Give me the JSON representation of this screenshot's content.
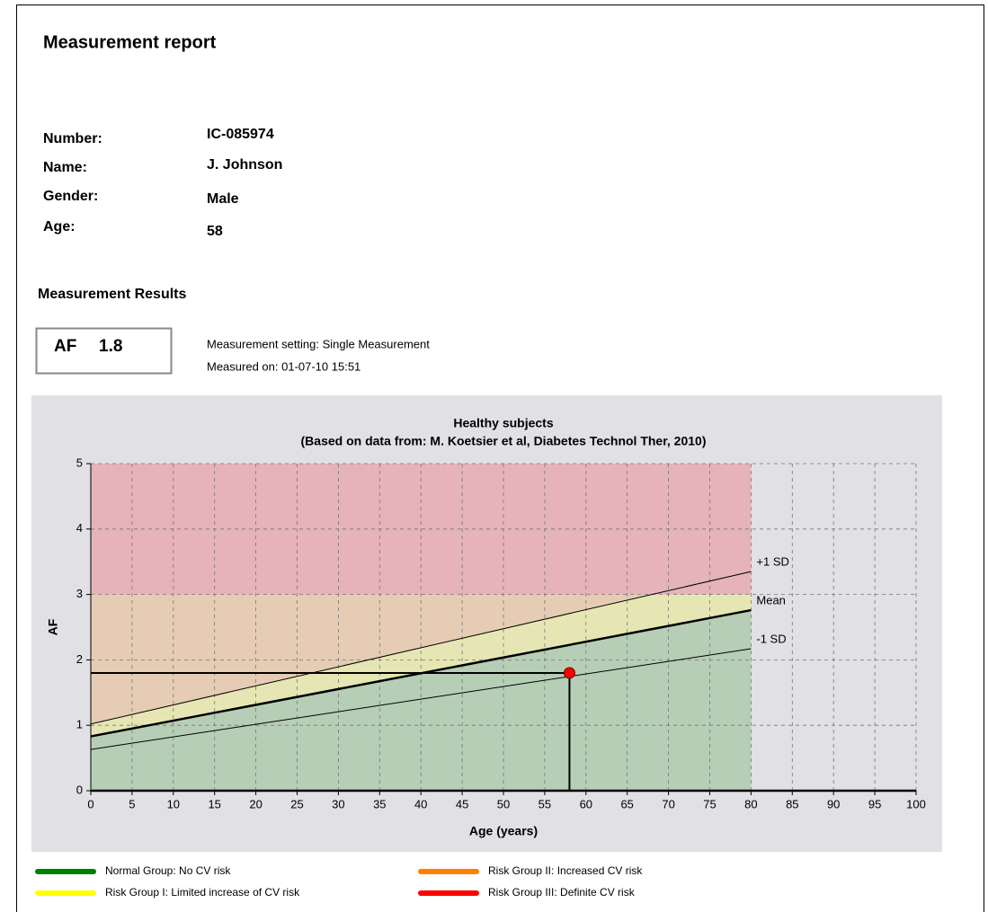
{
  "header": {
    "title": "Measurement report"
  },
  "patient": [
    {
      "label": "Number:",
      "value": "IC-085974"
    },
    {
      "label": "Name:",
      "value": "J. Johnson"
    },
    {
      "label": "Gender:",
      "value": "Male"
    },
    {
      "label": "Age:",
      "value": "58"
    }
  ],
  "results": {
    "heading": "Measurement Results",
    "af_label": "AF",
    "af_value": "1.8",
    "setting": "Measurement setting: Single Measurement",
    "measured_on": "Measured on: 01-07-10 15:51"
  },
  "chart_data": {
    "type": "line",
    "title": "Healthy subjects",
    "subtitle": "(Based on data from: M. Koetsier et al, Diabetes Technol Ther, 2010)",
    "x_label": "Age (years)",
    "y_label": "AF",
    "xlim": [
      0,
      100
    ],
    "ylim": [
      0,
      5
    ],
    "xticks": [
      0,
      5,
      10,
      15,
      20,
      25,
      30,
      35,
      40,
      45,
      50,
      55,
      60,
      65,
      70,
      75,
      80,
      85,
      90,
      95,
      100
    ],
    "yticks": [
      0,
      1,
      2,
      3,
      4,
      5
    ],
    "grid": true,
    "series": [
      {
        "name": "+1 SD",
        "color": "#000000",
        "line_width": 1,
        "x": [
          0,
          80
        ],
        "values": [
          1.02,
          3.35
        ]
      },
      {
        "name": "Mean",
        "color": "#000000",
        "line_width": 2.5,
        "x": [
          0,
          80
        ],
        "values": [
          0.83,
          2.76
        ]
      },
      {
        "name": "-1 SD",
        "color": "#000000",
        "line_width": 1,
        "x": [
          0,
          80
        ],
        "values": [
          0.63,
          2.17
        ]
      }
    ],
    "zone_threshold": 3,
    "zone_age_limit": 80,
    "zone_colors": {
      "red": "#e5b3b8",
      "orange": "#e6ccb4",
      "yellow": "#e6e6b4",
      "green": "#b6cdb6"
    },
    "point": {
      "x": 58,
      "y": 1.8,
      "color": "#ff0000"
    }
  },
  "legend": [
    {
      "label": "Normal Group: No CV risk",
      "color": "#008000"
    },
    {
      "label": "Risk Group II: Increased CV risk",
      "color": "#ff8000"
    },
    {
      "label": "Risk Group I: Limited increase of CV risk",
      "color": "#ffff00"
    },
    {
      "label": "Risk Group III: Definite CV risk",
      "color": "#ff0000"
    }
  ]
}
